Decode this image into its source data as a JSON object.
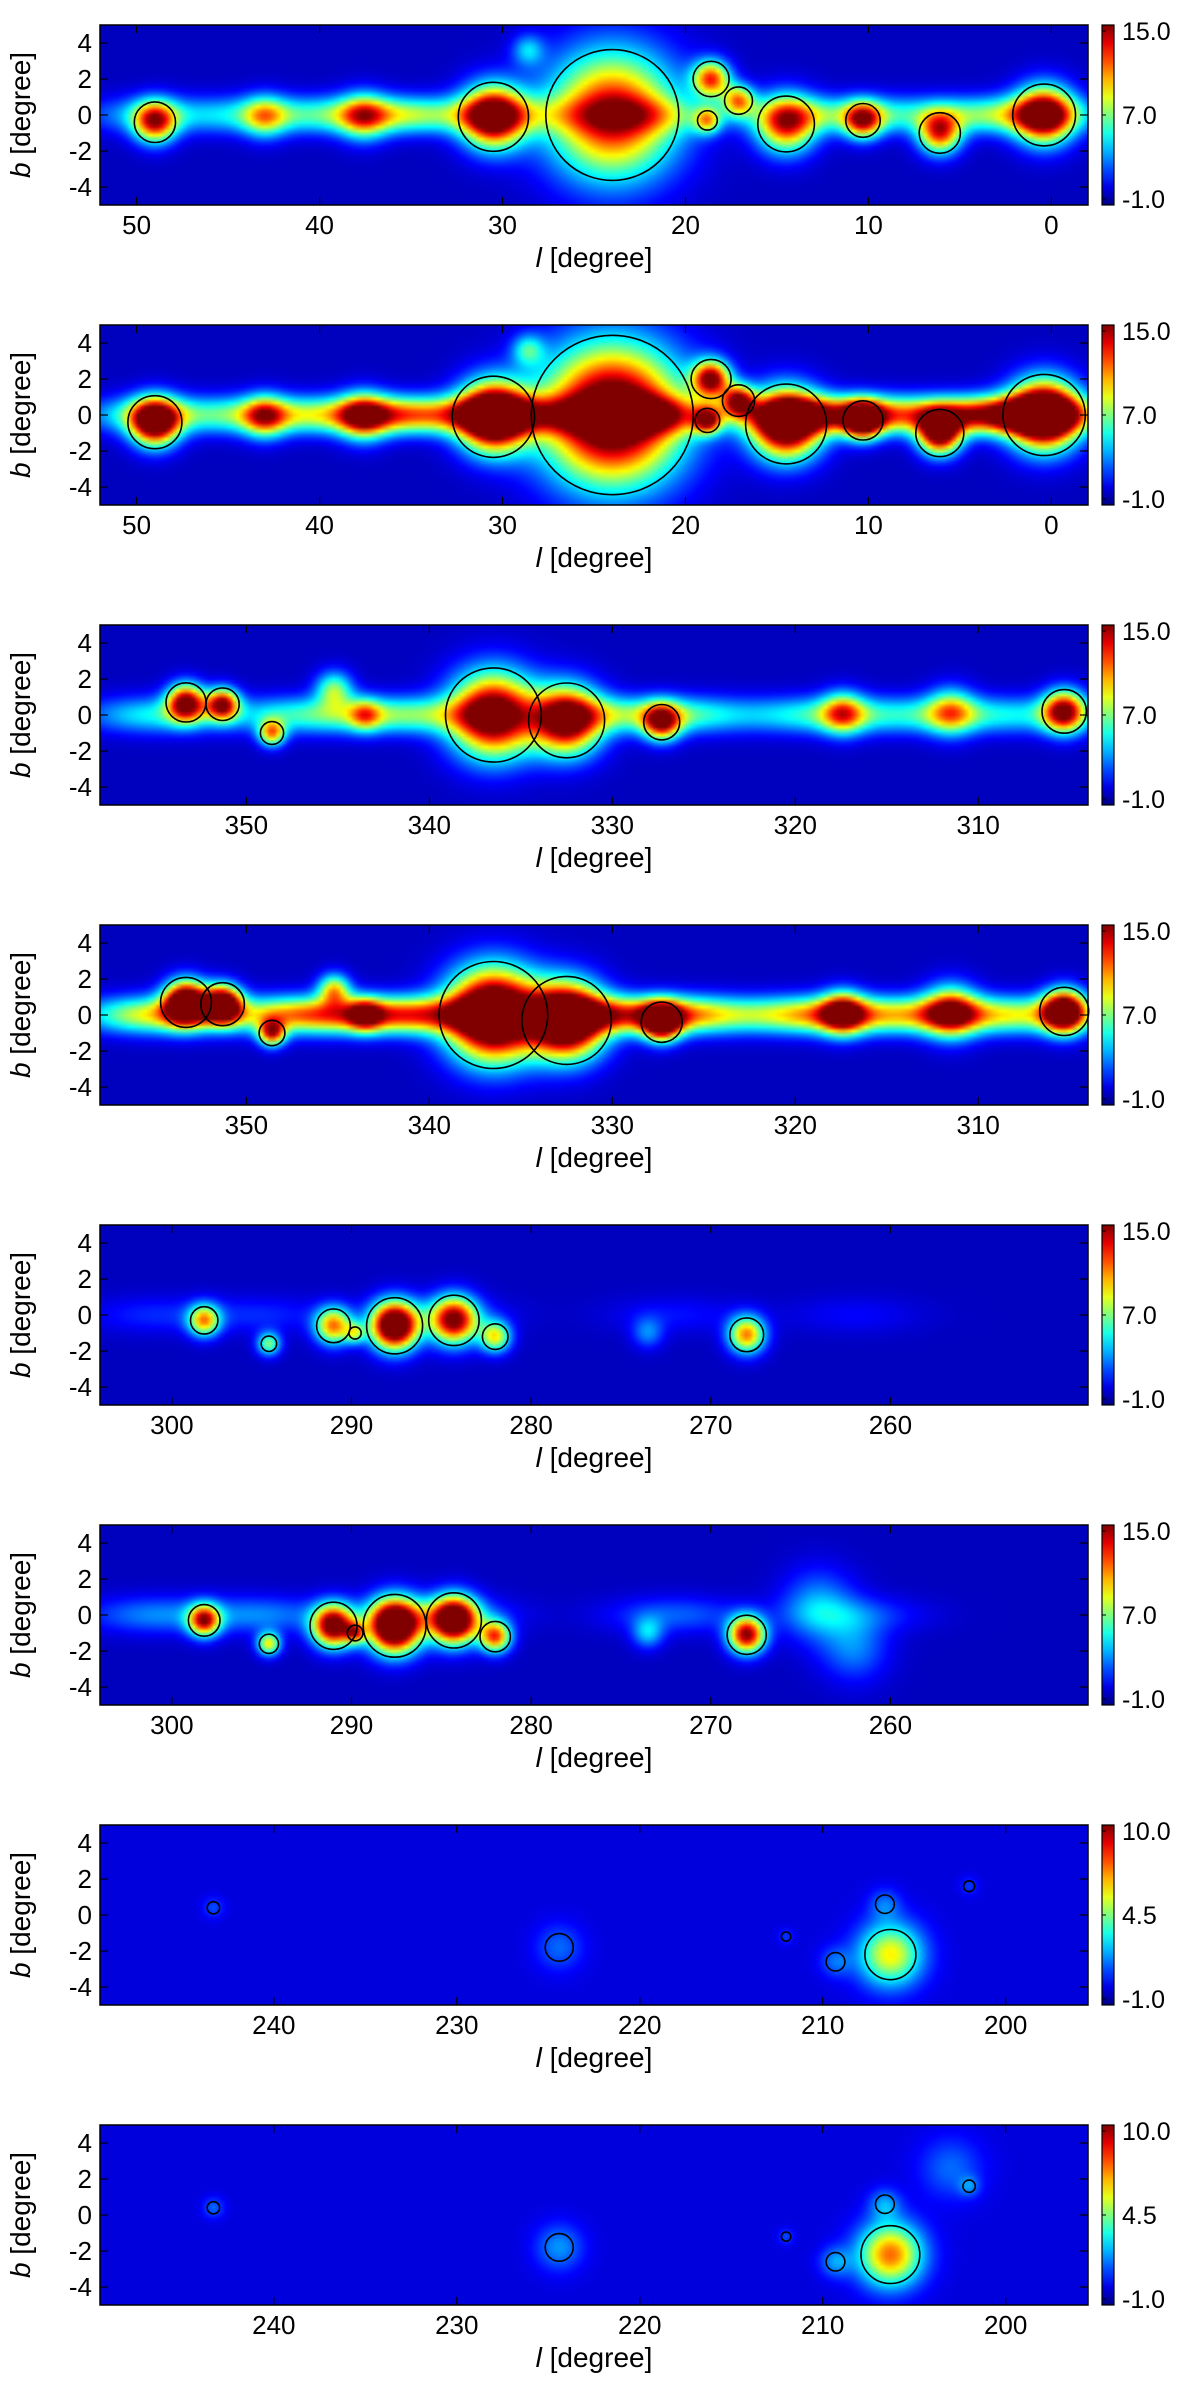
{
  "chart_data": [
    {
      "type": "heatmap",
      "title": "",
      "xlabel": "l [degree]",
      "ylabel": "b [degree]",
      "xlim": [
        52,
        -2
      ],
      "ylim": [
        -5,
        5
      ],
      "xticks": [
        50,
        40,
        30,
        20,
        10,
        0
      ],
      "yticks": [
        4,
        2,
        0,
        -2,
        -4
      ],
      "colorbar": {
        "min": -1.0,
        "max": 15.0,
        "ticks": [
          "15.0",
          "7.0",
          "-1.0"
        ]
      },
      "plane": [
        {
          "l": 49,
          "v": 4
        },
        {
          "l": 43,
          "v": 5
        },
        {
          "l": 37.5,
          "v": 6
        },
        {
          "l": 34,
          "v": 4.5
        },
        {
          "l": 29,
          "v": 3.5
        },
        {
          "l": 22,
          "v": 4
        },
        {
          "l": 13,
          "v": 4.5
        },
        {
          "l": 9,
          "v": 4
        },
        {
          "l": 4,
          "v": 4
        },
        {
          "l": 1,
          "v": 5
        }
      ],
      "sources": [
        {
          "l": 49.0,
          "b": -0.4,
          "v": 12,
          "s": 0.8,
          "c": true
        },
        {
          "l": 43.0,
          "b": -0.1,
          "v": 6,
          "s": 0.8,
          "c": false
        },
        {
          "l": 37.6,
          "b": -0.1,
          "v": 7,
          "s": 0.9,
          "c": false
        },
        {
          "l": 30.5,
          "b": -0.1,
          "v": 16,
          "s": 1.2,
          "c": true
        },
        {
          "l": 24.0,
          "b": 0.0,
          "v": 14,
          "s": 2.4,
          "c": true
        },
        {
          "l": 28.6,
          "b": 3.6,
          "v": 4,
          "s": 0.6,
          "c": false
        },
        {
          "l": 18.6,
          "b": 2.0,
          "v": 12,
          "s": 0.7,
          "c": true
        },
        {
          "l": 17.1,
          "b": 0.8,
          "v": 10,
          "s": 0.6,
          "c": true
        },
        {
          "l": 18.8,
          "b": -0.3,
          "v": 8,
          "s": 0.5,
          "c": true
        },
        {
          "l": 14.5,
          "b": -0.5,
          "v": 12,
          "s": 1.1,
          "c": true
        },
        {
          "l": 10.3,
          "b": -0.3,
          "v": 11,
          "s": 0.7,
          "c": true
        },
        {
          "l": 6.1,
          "b": -1.0,
          "v": 12,
          "s": 0.8,
          "c": true
        },
        {
          "l": 0.4,
          "b": 0.0,
          "v": 15,
          "s": 1.1,
          "c": true
        }
      ]
    },
    {
      "type": "heatmap",
      "title": "",
      "xlabel": "l [degree]",
      "ylabel": "b [degree]",
      "xlim": [
        52,
        -2
      ],
      "ylim": [
        -5,
        5
      ],
      "xticks": [
        50,
        40,
        30,
        20,
        10,
        0
      ],
      "yticks": [
        4,
        2,
        0,
        -2,
        -4
      ],
      "colorbar": {
        "min": -1.0,
        "max": 15.0,
        "ticks": [
          "15.0",
          "7.0",
          "-1.0"
        ]
      },
      "plane": [
        {
          "l": 49,
          "v": 6
        },
        {
          "l": 43,
          "v": 7
        },
        {
          "l": 37.5,
          "v": 8
        },
        {
          "l": 34,
          "v": 7
        },
        {
          "l": 29,
          "v": 8
        },
        {
          "l": 22,
          "v": 9
        },
        {
          "l": 13,
          "v": 10
        },
        {
          "l": 9,
          "v": 8
        },
        {
          "l": 4,
          "v": 9
        },
        {
          "l": 1,
          "v": 10
        }
      ],
      "sources": [
        {
          "l": 49.0,
          "b": -0.4,
          "v": 17,
          "s": 0.9,
          "c": true
        },
        {
          "l": 43.0,
          "b": -0.1,
          "v": 8,
          "s": 0.8,
          "c": false
        },
        {
          "l": 37.6,
          "b": -0.1,
          "v": 9,
          "s": 0.9,
          "c": false
        },
        {
          "l": 30.5,
          "b": -0.1,
          "v": 20,
          "s": 1.3,
          "c": true
        },
        {
          "l": 24.0,
          "b": 0.0,
          "v": 19,
          "s": 2.6,
          "c": true
        },
        {
          "l": 28.6,
          "b": 3.6,
          "v": 5,
          "s": 0.6,
          "c": false
        },
        {
          "l": 18.6,
          "b": 2.0,
          "v": 15,
          "s": 0.7,
          "c": true
        },
        {
          "l": 17.1,
          "b": 0.8,
          "v": 13,
          "s": 0.6,
          "c": true
        },
        {
          "l": 18.8,
          "b": -0.3,
          "v": 11,
          "s": 0.5,
          "c": true
        },
        {
          "l": 14.5,
          "b": -0.5,
          "v": 19,
          "s": 1.3,
          "c": true
        },
        {
          "l": 10.3,
          "b": -0.3,
          "v": 15,
          "s": 0.7,
          "c": true
        },
        {
          "l": 6.1,
          "b": -1.0,
          "v": 17,
          "s": 0.8,
          "c": true
        },
        {
          "l": 0.4,
          "b": 0.0,
          "v": 20,
          "s": 1.3,
          "c": true
        }
      ]
    },
    {
      "type": "heatmap",
      "title": "",
      "xlabel": "l [degree]",
      "ylabel": "b [degree]",
      "xlim": [
        358,
        304
      ],
      "ylim": [
        -5,
        5
      ],
      "xticks": [
        350,
        340,
        330,
        320,
        310
      ],
      "yticks": [
        4,
        2,
        0,
        -2,
        -4
      ],
      "colorbar": {
        "min": -1.0,
        "max": 15.0,
        "ticks": [
          "15.0",
          "7.0",
          "-1.0"
        ]
      },
      "plane": [
        {
          "l": 355,
          "v": 5
        },
        {
          "l": 348,
          "v": 4
        },
        {
          "l": 344,
          "v": 4.5
        },
        {
          "l": 340,
          "v": 5
        },
        {
          "l": 330,
          "v": 5
        },
        {
          "l": 326,
          "v": 5
        },
        {
          "l": 320,
          "v": 3
        },
        {
          "l": 317,
          "v": 4
        },
        {
          "l": 312,
          "v": 4.5
        },
        {
          "l": 307,
          "v": 4
        }
      ],
      "sources": [
        {
          "l": 353.3,
          "b": 0.7,
          "v": 15,
          "s": 0.7,
          "c": true
        },
        {
          "l": 351.3,
          "b": 0.6,
          "v": 14,
          "s": 0.6,
          "c": true
        },
        {
          "l": 348.6,
          "b": -1.0,
          "v": 10,
          "s": 0.5,
          "c": true
        },
        {
          "l": 345.2,
          "b": 1.4,
          "v": 7,
          "s": 0.7,
          "c": false
        },
        {
          "l": 343.5,
          "b": 0.0,
          "v": 6,
          "s": 0.6,
          "c": false
        },
        {
          "l": 336.5,
          "b": 0.0,
          "v": 17,
          "s": 1.6,
          "c": true
        },
        {
          "l": 332.5,
          "b": -0.3,
          "v": 16,
          "s": 1.3,
          "c": true
        },
        {
          "l": 327.3,
          "b": -0.4,
          "v": 12,
          "s": 0.7,
          "c": true
        },
        {
          "l": 317.4,
          "b": 0.1,
          "v": 8,
          "s": 0.8,
          "c": false
        },
        {
          "l": 311.5,
          "b": 0.2,
          "v": 7,
          "s": 0.9,
          "c": false
        },
        {
          "l": 305.3,
          "b": 0.2,
          "v": 14,
          "s": 0.8,
          "c": true
        }
      ]
    },
    {
      "type": "heatmap",
      "title": "",
      "xlabel": "l [degree]",
      "ylabel": "b [degree]",
      "xlim": [
        358,
        304
      ],
      "ylim": [
        -5,
        5
      ],
      "xticks": [
        350,
        340,
        330,
        320,
        310
      ],
      "yticks": [
        4,
        2,
        0,
        -2,
        -4
      ],
      "colorbar": {
        "min": -1.0,
        "max": 15.0,
        "ticks": [
          "15.0",
          "7.0",
          "-1.0"
        ]
      },
      "plane": [
        {
          "l": 355,
          "v": 9
        },
        {
          "l": 348,
          "v": 8
        },
        {
          "l": 344,
          "v": 8
        },
        {
          "l": 340,
          "v": 9
        },
        {
          "l": 330,
          "v": 9
        },
        {
          "l": 326,
          "v": 9
        },
        {
          "l": 320,
          "v": 6
        },
        {
          "l": 317,
          "v": 7
        },
        {
          "l": 312,
          "v": 8
        },
        {
          "l": 307,
          "v": 7
        }
      ],
      "sources": [
        {
          "l": 353.3,
          "b": 0.7,
          "v": 20,
          "s": 0.8,
          "c": true
        },
        {
          "l": 351.3,
          "b": 0.6,
          "v": 19,
          "s": 0.7,
          "c": true
        },
        {
          "l": 348.6,
          "b": -1.0,
          "v": 12,
          "s": 0.5,
          "c": true
        },
        {
          "l": 345.2,
          "b": 1.4,
          "v": 9,
          "s": 0.6,
          "c": false
        },
        {
          "l": 343.5,
          "b": 0.0,
          "v": 8,
          "s": 0.6,
          "c": false
        },
        {
          "l": 336.5,
          "b": 0.0,
          "v": 22,
          "s": 1.7,
          "c": true
        },
        {
          "l": 332.5,
          "b": -0.3,
          "v": 21,
          "s": 1.4,
          "c": true
        },
        {
          "l": 327.3,
          "b": -0.4,
          "v": 16,
          "s": 0.7,
          "c": true
        },
        {
          "l": 317.4,
          "b": 0.1,
          "v": 11,
          "s": 0.8,
          "c": false
        },
        {
          "l": 311.5,
          "b": 0.2,
          "v": 10,
          "s": 1.0,
          "c": false
        },
        {
          "l": 305.3,
          "b": 0.2,
          "v": 18,
          "s": 0.8,
          "c": true
        }
      ]
    },
    {
      "type": "heatmap",
      "title": "",
      "xlabel": "l [degree]",
      "ylabel": "b [degree]",
      "xlim": [
        304,
        249
      ],
      "ylim": [
        -5,
        5
      ],
      "xticks": [
        300,
        290,
        280,
        270,
        260
      ],
      "yticks": [
        4,
        2,
        0,
        -2,
        -4
      ],
      "colorbar": {
        "min": -1.0,
        "max": 15.0,
        "ticks": [
          "15.0",
          "7.0",
          "-1.0"
        ]
      },
      "plane": [
        {
          "l": 301,
          "v": 1.5
        },
        {
          "l": 295,
          "v": 1.5
        },
        {
          "l": 285,
          "v": 1.5
        },
        {
          "l": 272,
          "v": 1.2
        },
        {
          "l": 262,
          "v": 1
        }
      ],
      "sources": [
        {
          "l": 298.2,
          "b": -0.3,
          "v": 10,
          "s": 0.6,
          "c": true
        },
        {
          "l": 294.6,
          "b": -1.6,
          "v": 7,
          "s": 0.45,
          "c": true
        },
        {
          "l": 291.0,
          "b": -0.6,
          "v": 11,
          "s": 0.7,
          "c": true
        },
        {
          "l": 289.8,
          "b": -1.0,
          "v": 6,
          "s": 0.4,
          "c": true
        },
        {
          "l": 287.6,
          "b": -0.6,
          "v": 20,
          "s": 0.9,
          "c": true
        },
        {
          "l": 284.3,
          "b": -0.3,
          "v": 15,
          "s": 0.9,
          "c": true
        },
        {
          "l": 282.0,
          "b": -1.2,
          "v": 9,
          "s": 0.6,
          "c": true
        },
        {
          "l": 268.0,
          "b": -1.1,
          "v": 11,
          "s": 0.7,
          "c": true
        },
        {
          "l": 273.5,
          "b": -1.0,
          "v": 3,
          "s": 0.6,
          "c": false
        }
      ]
    },
    {
      "type": "heatmap",
      "title": "",
      "xlabel": "l [degree]",
      "ylabel": "b [degree]",
      "xlim": [
        304,
        249
      ],
      "ylim": [
        -5,
        5
      ],
      "xticks": [
        300,
        290,
        280,
        270,
        260
      ],
      "yticks": [
        4,
        2,
        0,
        -2,
        -4
      ],
      "colorbar": {
        "min": -1.0,
        "max": 15.0,
        "ticks": [
          "15.0",
          "7.0",
          "-1.0"
        ]
      },
      "plane": [
        {
          "l": 301,
          "v": 3
        },
        {
          "l": 295,
          "v": 3
        },
        {
          "l": 285,
          "v": 3
        },
        {
          "l": 272,
          "v": 2.5
        },
        {
          "l": 262,
          "v": 2
        }
      ],
      "sources": [
        {
          "l": 298.2,
          "b": -0.3,
          "v": 13,
          "s": 0.6,
          "c": true
        },
        {
          "l": 294.6,
          "b": -1.6,
          "v": 9,
          "s": 0.45,
          "c": true
        },
        {
          "l": 291.0,
          "b": -0.6,
          "v": 17,
          "s": 0.8,
          "c": true
        },
        {
          "l": 289.8,
          "b": -1.0,
          "v": 8,
          "s": 0.4,
          "c": true
        },
        {
          "l": 287.6,
          "b": -0.6,
          "v": 22,
          "s": 1.0,
          "c": true
        },
        {
          "l": 284.3,
          "b": -0.3,
          "v": 19,
          "s": 0.9,
          "c": true
        },
        {
          "l": 282.0,
          "b": -1.2,
          "v": 12,
          "s": 0.6,
          "c": true
        },
        {
          "l": 268.0,
          "b": -1.1,
          "v": 15,
          "s": 0.7,
          "c": true
        },
        {
          "l": 264.0,
          "b": 0.5,
          "v": 3.5,
          "s": 1.4,
          "c": false
        },
        {
          "l": 262.0,
          "b": -1.8,
          "v": 3,
          "s": 1.3,
          "c": false
        },
        {
          "l": 273.5,
          "b": -1.0,
          "v": 4,
          "s": 0.6,
          "c": false
        }
      ]
    },
    {
      "type": "heatmap",
      "title": "",
      "xlabel": "l [degree]",
      "ylabel": "b [degree]",
      "xlim": [
        249.5,
        195.5
      ],
      "ylim": [
        -5,
        5
      ],
      "xticks": [
        240,
        230,
        220,
        210,
        200
      ],
      "yticks": [
        4,
        2,
        0,
        -2,
        -4
      ],
      "colorbar": {
        "min": -1.0,
        "max": 10.0,
        "ticks": [
          "10.0",
          "4.5",
          "-1.0"
        ]
      },
      "plane": [],
      "sources": [
        {
          "l": 243.3,
          "b": 0.4,
          "v": 1.2,
          "s": 0.4,
          "c": true
        },
        {
          "l": 224.4,
          "b": -1.8,
          "v": 1.5,
          "s": 0.9,
          "c": true
        },
        {
          "l": 212.0,
          "b": -1.2,
          "v": 1.0,
          "s": 0.3,
          "c": true
        },
        {
          "l": 209.3,
          "b": -2.6,
          "v": 1.5,
          "s": 0.6,
          "c": true
        },
        {
          "l": 206.6,
          "b": 0.6,
          "v": 1.5,
          "s": 0.6,
          "c": true
        },
        {
          "l": 206.3,
          "b": -2.2,
          "v": 6.0,
          "s": 1.2,
          "c": true
        },
        {
          "l": 202.0,
          "b": 1.6,
          "v": 1.0,
          "s": 0.35,
          "c": true
        }
      ]
    },
    {
      "type": "heatmap",
      "title": "",
      "xlabel": "l [degree]",
      "ylabel": "b [degree]",
      "xlim": [
        249.5,
        195.5
      ],
      "ylim": [
        -5,
        5
      ],
      "xticks": [
        240,
        230,
        220,
        210,
        200
      ],
      "yticks": [
        4,
        2,
        0,
        -2,
        -4
      ],
      "colorbar": {
        "min": -1.0,
        "max": 10.0,
        "ticks": [
          "10.0",
          "4.5",
          "-1.0"
        ]
      },
      "plane": [],
      "sources": [
        {
          "l": 243.3,
          "b": 0.4,
          "v": 1.5,
          "s": 0.4,
          "c": true
        },
        {
          "l": 224.4,
          "b": -1.8,
          "v": 2.0,
          "s": 0.9,
          "c": true
        },
        {
          "l": 212.0,
          "b": -1.2,
          "v": 1.2,
          "s": 0.3,
          "c": true
        },
        {
          "l": 209.3,
          "b": -2.6,
          "v": 2.0,
          "s": 0.6,
          "c": true
        },
        {
          "l": 206.6,
          "b": 0.6,
          "v": 2.0,
          "s": 0.6,
          "c": true
        },
        {
          "l": 206.3,
          "b": -2.2,
          "v": 7.5,
          "s": 1.2,
          "c": true
        },
        {
          "l": 202.0,
          "b": 1.6,
          "v": 1.5,
          "s": 0.4,
          "c": true
        },
        {
          "l": 203.0,
          "b": 2.6,
          "v": 1.5,
          "s": 1.2,
          "c": false
        }
      ]
    }
  ]
}
